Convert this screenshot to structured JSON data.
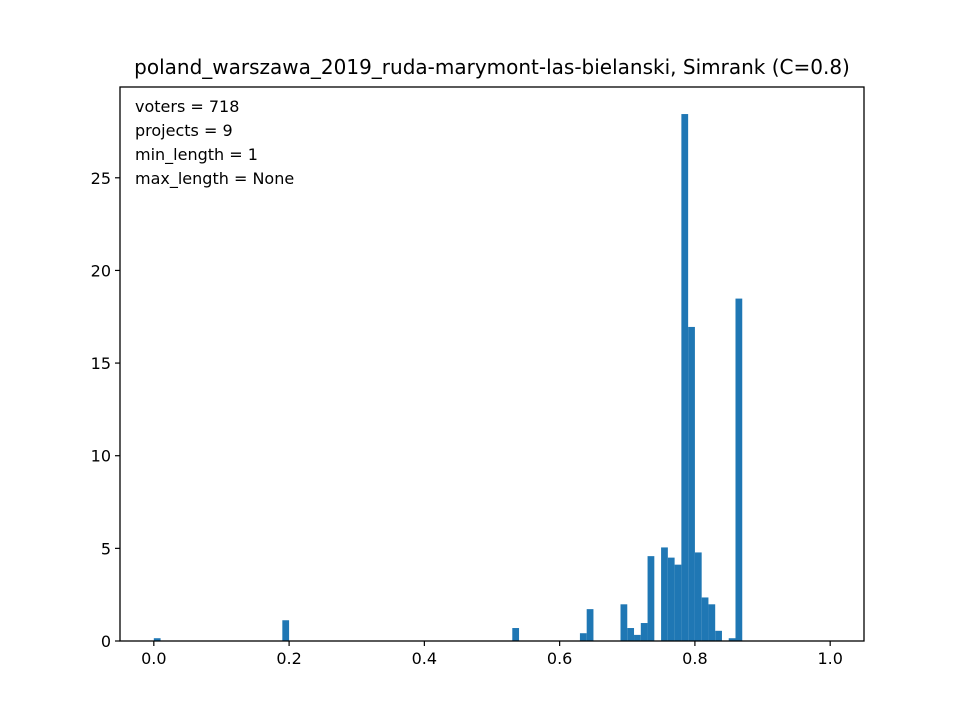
{
  "chart_data": {
    "type": "bar",
    "title": "poland_warszawa_2019_ruda-marymont-las-bielanski, Simrank (C=0.8)",
    "xlabel": "",
    "ylabel": "",
    "xlim": [
      -0.05,
      1.05
    ],
    "ylim": [
      0,
      29.9
    ],
    "grid": false,
    "bar_width": 0.01,
    "color": "#1f77b4",
    "xticks": [
      {
        "value": 0.0,
        "label": "0.0"
      },
      {
        "value": 0.2,
        "label": "0.2"
      },
      {
        "value": 0.4,
        "label": "0.4"
      },
      {
        "value": 0.6,
        "label": "0.6"
      },
      {
        "value": 0.8,
        "label": "0.8"
      },
      {
        "value": 1.0,
        "label": "1.0"
      }
    ],
    "yticks": [
      {
        "value": 0,
        "label": "0"
      },
      {
        "value": 5,
        "label": "5"
      },
      {
        "value": 10,
        "label": "10"
      },
      {
        "value": 15,
        "label": "15"
      },
      {
        "value": 20,
        "label": "20"
      },
      {
        "value": 25,
        "label": "25"
      }
    ],
    "bins": [
      {
        "x": 0.0,
        "value": 0.15
      },
      {
        "x": 0.19,
        "value": 1.12
      },
      {
        "x": 0.53,
        "value": 0.7
      },
      {
        "x": 0.63,
        "value": 0.42
      },
      {
        "x": 0.64,
        "value": 1.72
      },
      {
        "x": 0.69,
        "value": 1.98
      },
      {
        "x": 0.7,
        "value": 0.7
      },
      {
        "x": 0.71,
        "value": 0.33
      },
      {
        "x": 0.72,
        "value": 0.97
      },
      {
        "x": 0.73,
        "value": 4.58
      },
      {
        "x": 0.75,
        "value": 5.05
      },
      {
        "x": 0.76,
        "value": 4.5
      },
      {
        "x": 0.77,
        "value": 4.12
      },
      {
        "x": 0.78,
        "value": 28.44
      },
      {
        "x": 0.79,
        "value": 16.95
      },
      {
        "x": 0.8,
        "value": 4.78
      },
      {
        "x": 0.81,
        "value": 2.35
      },
      {
        "x": 0.82,
        "value": 1.98
      },
      {
        "x": 0.83,
        "value": 0.55
      },
      {
        "x": 0.85,
        "value": 0.15
      },
      {
        "x": 0.86,
        "value": 18.48
      }
    ],
    "annotations": [
      "voters = 718",
      "projects = 9",
      "min_length = 1",
      "max_length = None"
    ]
  }
}
